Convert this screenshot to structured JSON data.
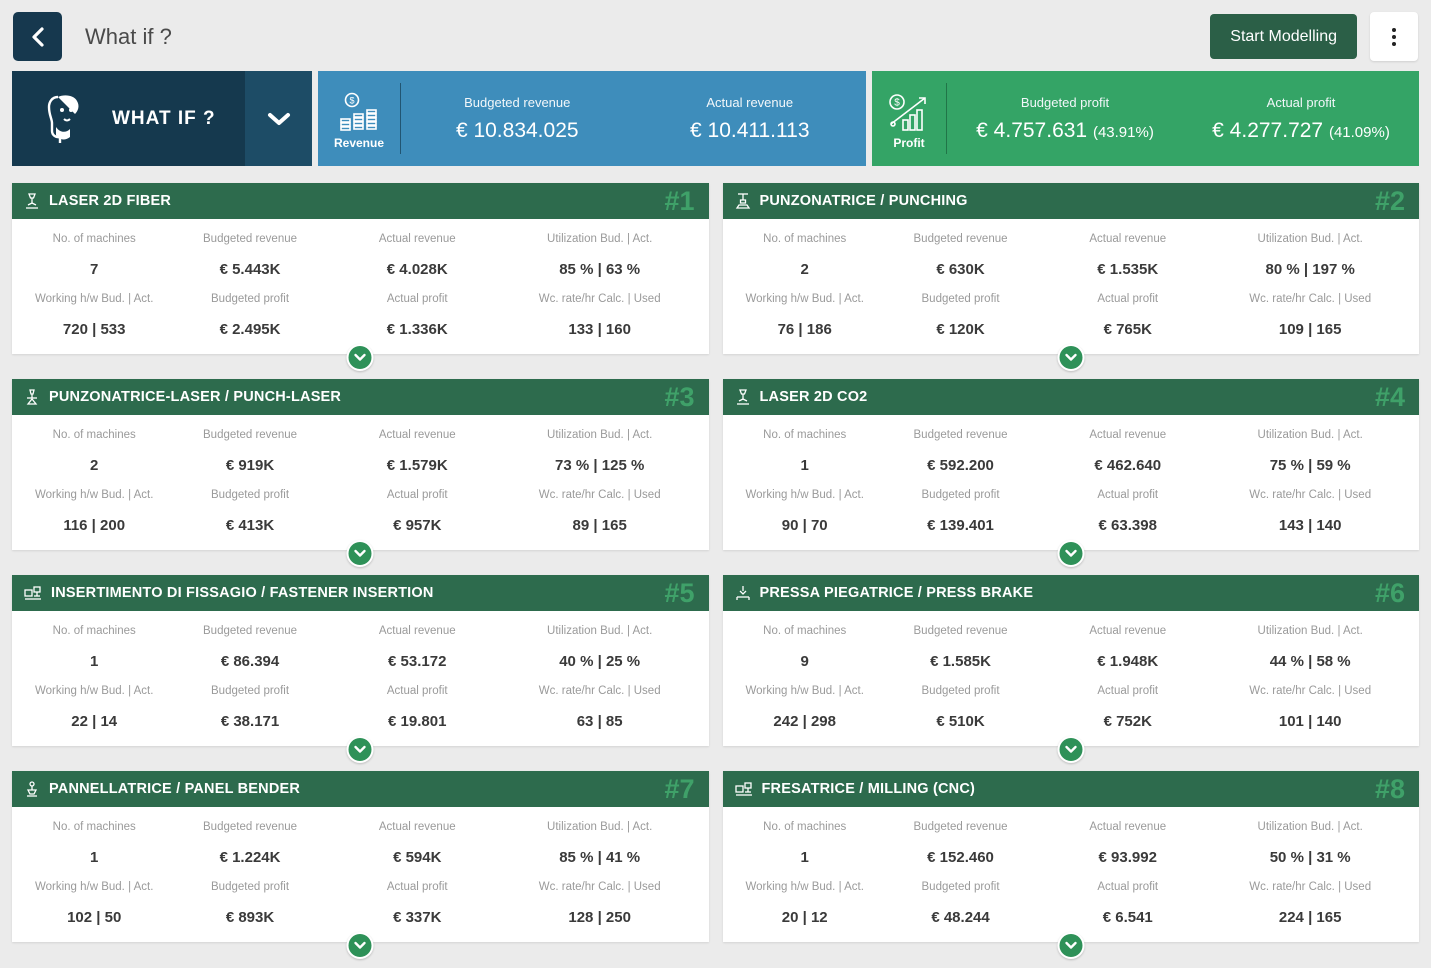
{
  "topbar": {
    "back_icon": "chevron-left-icon",
    "title": "What if ?",
    "start_modelling_label": "Start Modelling",
    "menu_icon": "kebab-menu-icon"
  },
  "kpi": {
    "whatif": {
      "label": "WHAT IF ?",
      "avatar_icon": "thinking-person-icon",
      "caret_icon": "chevron-down-icon"
    },
    "revenue": {
      "icon": "money-coins-icon",
      "icon_label": "Revenue",
      "budgeted_label": "Budgeted revenue",
      "budgeted_value": "€ 10.834.025",
      "actual_label": "Actual revenue",
      "actual_value": "€ 10.411.113"
    },
    "profit": {
      "icon": "profit-chart-icon",
      "icon_label": "Profit",
      "budgeted_label": "Budgeted profit",
      "budgeted_value": "€ 4.757.631",
      "budgeted_pct": "(43.91%)",
      "actual_label": "Actual profit",
      "actual_value": "€ 4.277.727",
      "actual_pct": "(41.09%)"
    }
  },
  "card_labels": {
    "no_of_machines": "No. of machines",
    "budgeted_revenue": "Budgeted revenue",
    "actual_revenue": "Actual revenue",
    "utilization": "Utilization Bud. | Act.",
    "working_hw": "Working h/w Bud. | Act.",
    "budgeted_profit": "Budgeted profit",
    "actual_profit": "Actual profit",
    "wc_rate": "Wc. rate/hr Calc. | Used"
  },
  "cards": [
    {
      "number": "#1",
      "title": "LASER 2D FIBER",
      "icon": "laser-cutting-machine-icon",
      "machines": "7",
      "budgeted_revenue": "€ 5.443K",
      "actual_revenue": "€ 4.028K",
      "utilization": "85 % | 63 %",
      "working_hw": "720 | 533",
      "budgeted_profit": "€ 2.495K",
      "actual_profit": "€ 1.336K",
      "wc_rate": "133 | 160"
    },
    {
      "number": "#2",
      "title": "PUNZONATRICE / PUNCHING",
      "icon": "punching-machine-icon",
      "machines": "2",
      "budgeted_revenue": "€ 630K",
      "actual_revenue": "€ 1.535K",
      "utilization": "80 % | 197 %",
      "working_hw": "76 | 186",
      "budgeted_profit": "€ 120K",
      "actual_profit": "€ 765K",
      "wc_rate": "109 | 165"
    },
    {
      "number": "#3",
      "title": "PUNZONATRICE-LASER / PUNCH-LASER",
      "icon": "punch-laser-machine-icon",
      "machines": "2",
      "budgeted_revenue": "€ 919K",
      "actual_revenue": "€ 1.579K",
      "utilization": "73 % | 125 %",
      "working_hw": "116 | 200",
      "budgeted_profit": "€ 413K",
      "actual_profit": "€ 957K",
      "wc_rate": "89 | 165"
    },
    {
      "number": "#4",
      "title": "LASER 2D CO2",
      "icon": "laser-cutting-machine-icon",
      "machines": "1",
      "budgeted_revenue": "€ 592.200",
      "actual_revenue": "€ 462.640",
      "utilization": "75 % | 59 %",
      "working_hw": "90 | 70",
      "budgeted_profit": "€ 139.401",
      "actual_profit": "€ 63.398",
      "wc_rate": "143 | 140"
    },
    {
      "number": "#5",
      "title": "INSERTIMENTO DI FISSAGIO / FASTENER INSERTION",
      "icon": "cnc-console-machine-icon",
      "machines": "1",
      "budgeted_revenue": "€ 86.394",
      "actual_revenue": "€ 53.172",
      "utilization": "40 % | 25 %",
      "working_hw": "22 | 14",
      "budgeted_profit": "€ 38.171",
      "actual_profit": "€ 19.801",
      "wc_rate": "63 | 85"
    },
    {
      "number": "#6",
      "title": "PRESSA PIEGATRICE / PRESS BRAKE",
      "icon": "press-brake-machine-icon",
      "machines": "9",
      "budgeted_revenue": "€ 1.585K",
      "actual_revenue": "€ 1.948K",
      "utilization": "44 % | 58 %",
      "working_hw": "242 | 298",
      "budgeted_profit": "€ 510K",
      "actual_profit": "€ 752K",
      "wc_rate": "101 | 140"
    },
    {
      "number": "#7",
      "title": "PANNELLATRICE / PANEL BENDER",
      "icon": "panel-bender-machine-icon",
      "machines": "1",
      "budgeted_revenue": "€ 1.224K",
      "actual_revenue": "€ 594K",
      "utilization": "85 % | 41 %",
      "working_hw": "102 | 50",
      "budgeted_profit": "€ 893K",
      "actual_profit": "€ 337K",
      "wc_rate": "128 | 250"
    },
    {
      "number": "#8",
      "title": "FRESATRICE / MILLING (CNC)",
      "icon": "cnc-console-machine-icon",
      "machines": "1",
      "budgeted_revenue": "€ 152.460",
      "actual_revenue": "€ 93.992",
      "utilization": "50 % | 31 %",
      "working_hw": "20 | 12",
      "budgeted_profit": "€ 48.244",
      "actual_profit": "€ 6.541",
      "wc_rate": "224 | 165"
    }
  ],
  "colors": {
    "page_bg": "#ebebeb",
    "navy": "#16384e",
    "navy_light": "#1d4c66",
    "revenue_blue": "#3e8dbb",
    "profit_green": "#34a466",
    "card_header_green": "#2d6b4d",
    "card_number_green": "#3fa169",
    "expand_circle_green": "#2e9158",
    "start_button_green": "#2b5f47"
  }
}
